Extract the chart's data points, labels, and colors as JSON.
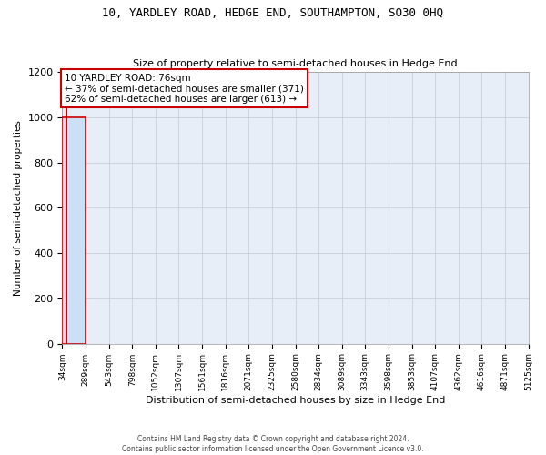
{
  "title": "10, YARDLEY ROAD, HEDGE END, SOUTHAMPTON, SO30 0HQ",
  "subtitle": "Size of property relative to semi-detached houses in Hedge End",
  "xlabel": "Distribution of semi-detached houses by size in Hedge End",
  "ylabel": "Number of semi-detached properties",
  "annotation_text": "10 YARDLEY ROAD: 76sqm\n← 37% of semi-detached houses are smaller (371)\n62% of semi-detached houses are larger (613) →",
  "bin_edges": [
    34,
    289,
    543,
    798,
    1052,
    1307,
    1561,
    1816,
    2071,
    2325,
    2580,
    2834,
    3089,
    3343,
    3598,
    3853,
    4107,
    4362,
    4616,
    4871,
    5125
  ],
  "bin_labels": [
    "34sqm",
    "289sqm",
    "543sqm",
    "798sqm",
    "1052sqm",
    "1307sqm",
    "1561sqm",
    "1816sqm",
    "2071sqm",
    "2325sqm",
    "2580sqm",
    "2834sqm",
    "3089sqm",
    "3343sqm",
    "3598sqm",
    "3853sqm",
    "4107sqm",
    "4362sqm",
    "4616sqm",
    "4871sqm",
    "5125sqm"
  ],
  "bar_heights": [
    1000,
    0,
    0,
    0,
    0,
    0,
    0,
    0,
    0,
    0,
    0,
    0,
    0,
    0,
    0,
    0,
    0,
    0,
    0,
    0
  ],
  "bar_color": "#cce0f5",
  "bar_edge_color": "#aac8e8",
  "highlight_bar_index": 0,
  "highlight_edge_color": "#cc0000",
  "vline_color": "#cc0000",
  "vline_x": 76,
  "ylim": [
    0,
    1200
  ],
  "yticks": [
    0,
    200,
    400,
    600,
    800,
    1000,
    1200
  ],
  "grid_color": "#c8d0dc",
  "bg_color": "#e8eef8",
  "annotation_box_edge_color": "#cc0000",
  "footer_line1": "Contains HM Land Registry data © Crown copyright and database right 2024.",
  "footer_line2": "Contains public sector information licensed under the Open Government Licence v3.0."
}
